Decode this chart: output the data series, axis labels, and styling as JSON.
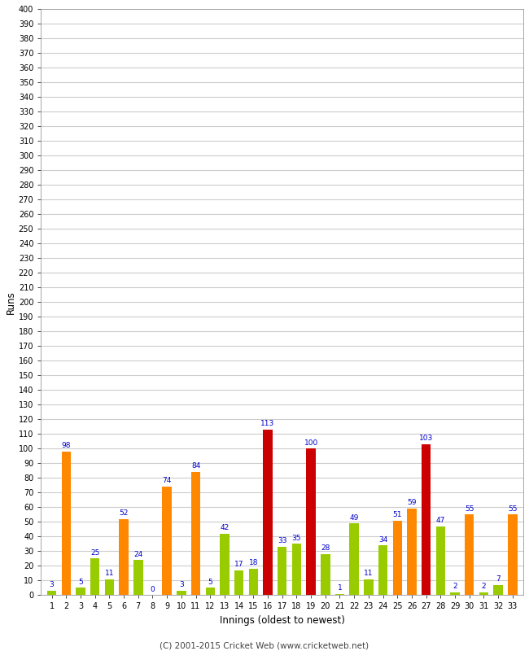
{
  "xlabel": "Innings (oldest to newest)",
  "ylabel": "Runs",
  "footer": "(C) 2001-2015 Cricket Web (www.cricketweb.net)",
  "innings": [
    1,
    2,
    3,
    4,
    5,
    6,
    7,
    8,
    9,
    10,
    11,
    12,
    13,
    14,
    15,
    16,
    17,
    18,
    19,
    20,
    21,
    22,
    23,
    24,
    25,
    26,
    27,
    28,
    29,
    30,
    31,
    32,
    33
  ],
  "values": [
    3,
    98,
    5,
    25,
    11,
    52,
    24,
    0,
    74,
    3,
    84,
    5,
    42,
    17,
    18,
    113,
    33,
    35,
    100,
    28,
    1,
    49,
    11,
    34,
    51,
    59,
    103,
    47,
    2,
    55,
    2,
    7,
    55
  ],
  "colors": [
    "#99cc00",
    "#ff8800",
    "#99cc00",
    "#99cc00",
    "#99cc00",
    "#ff8800",
    "#99cc00",
    "#99cc00",
    "#ff8800",
    "#99cc00",
    "#ff8800",
    "#99cc00",
    "#99cc00",
    "#99cc00",
    "#99cc00",
    "#cc0000",
    "#99cc00",
    "#99cc00",
    "#cc0000",
    "#99cc00",
    "#99cc00",
    "#99cc00",
    "#99cc00",
    "#99cc00",
    "#ff8800",
    "#ff8800",
    "#cc0000",
    "#99cc00",
    "#99cc00",
    "#ff8800",
    "#99cc00",
    "#99cc00",
    "#ff8800"
  ],
  "label_color": "#0000cc",
  "bg_color": "#ffffff",
  "plot_bg_color": "#ffffff",
  "grid_color": "#cccccc",
  "ylim": [
    0,
    400
  ],
  "yticks": [
    0,
    10,
    20,
    30,
    40,
    50,
    60,
    70,
    80,
    90,
    100,
    110,
    120,
    130,
    140,
    150,
    160,
    170,
    180,
    190,
    200,
    210,
    220,
    230,
    240,
    250,
    260,
    270,
    280,
    290,
    300,
    310,
    320,
    330,
    340,
    350,
    360,
    370,
    380,
    390,
    400
  ],
  "figsize": [
    6.5,
    8.0
  ],
  "dpi": 100
}
